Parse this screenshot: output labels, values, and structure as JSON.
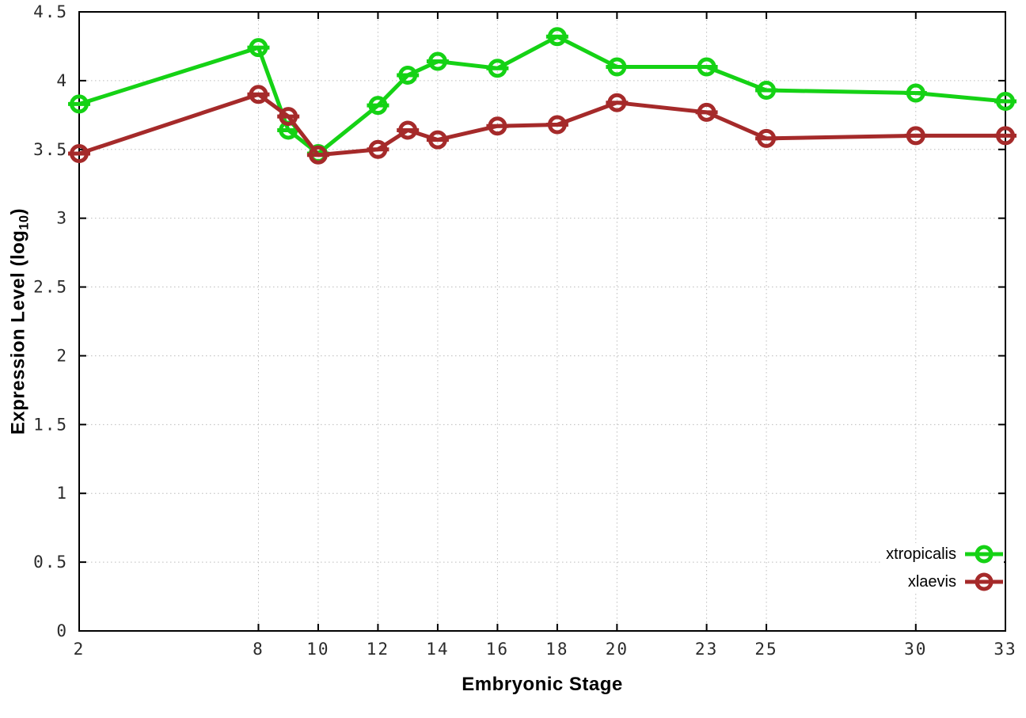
{
  "chart_data": {
    "type": "line",
    "title": "",
    "xlabel": "Embryonic Stage",
    "ylabel": {
      "main": "Expression Level (log",
      "sub": "10",
      "close": ")"
    },
    "x": [
      2,
      8,
      9,
      10,
      12,
      13,
      14,
      16,
      18,
      20,
      23,
      25,
      30,
      33
    ],
    "series": [
      {
        "name": "xtropicalis",
        "color": "#15d215",
        "values": [
          3.83,
          4.24,
          3.64,
          3.47,
          3.82,
          4.04,
          4.14,
          4.09,
          4.32,
          4.1,
          4.1,
          3.93,
          3.91,
          3.85
        ]
      },
      {
        "name": "xlaevis",
        "color": "#a52a2a",
        "values": [
          3.47,
          3.9,
          3.74,
          3.46,
          3.5,
          3.64,
          3.57,
          3.67,
          3.68,
          3.84,
          3.77,
          3.58,
          3.6,
          3.6
        ]
      }
    ],
    "xlim": [
      2,
      33
    ],
    "ylim": [
      0,
      4.5
    ],
    "xticks": {
      "values": [
        2,
        8,
        10,
        12,
        14,
        16,
        18,
        20,
        23,
        25,
        30,
        33
      ],
      "labels": [
        "2",
        "8",
        "10",
        "12",
        "14",
        "16",
        "18",
        "20",
        "23",
        "25",
        "30",
        "33"
      ]
    },
    "yticks": {
      "values": [
        0,
        0.5,
        1,
        1.5,
        2,
        2.5,
        3,
        3.5,
        4,
        4.5
      ],
      "labels": [
        "0",
        "0.5",
        "1",
        "1.5",
        "2",
        "2.5",
        "3",
        "3.5",
        "4",
        "4.5"
      ]
    },
    "grid": "dotted",
    "legend_position": "bottom-right",
    "marker": "open-circle-with-horizontal-errorbar-cap",
    "line_width": 5
  }
}
